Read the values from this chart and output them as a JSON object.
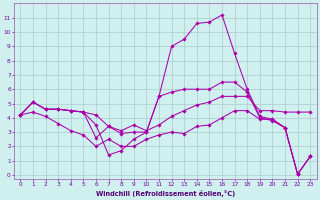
{
  "xlabel": "Windchill (Refroidissement éolien,°C)",
  "bg_color": "#cff0ee",
  "grid_color": "#aacccc",
  "line_color": "#aa00aa",
  "spine_color": "#9955aa",
  "tick_color": "#7700aa",
  "xlabel_color": "#550077",
  "xlim": [
    -0.5,
    23.5
  ],
  "ylim": [
    -0.3,
    12.0
  ],
  "xticks": [
    0,
    1,
    2,
    3,
    4,
    5,
    6,
    7,
    8,
    9,
    10,
    11,
    12,
    13,
    14,
    15,
    16,
    17,
    18,
    19,
    20,
    21,
    22,
    23
  ],
  "yticks": [
    0,
    1,
    2,
    3,
    4,
    5,
    6,
    7,
    8,
    9,
    10,
    11
  ],
  "lines": [
    {
      "x": [
        0,
        1,
        2,
        3,
        4,
        5,
        6,
        7,
        8,
        9,
        10,
        11,
        12,
        13,
        14,
        15,
        16,
        17,
        18,
        19,
        20,
        21,
        22,
        23
      ],
      "y": [
        4.2,
        5.1,
        4.6,
        4.6,
        4.5,
        4.4,
        3.5,
        1.4,
        1.7,
        2.5,
        3.0,
        5.5,
        9.0,
        9.5,
        10.6,
        10.7,
        11.2,
        8.5,
        6.0,
        4.1,
        3.9,
        3.3,
        0.05,
        1.3
      ]
    },
    {
      "x": [
        0,
        1,
        2,
        3,
        4,
        5,
        6,
        7,
        8,
        9,
        10,
        11,
        12,
        13,
        14,
        15,
        16,
        17,
        18,
        19,
        20,
        21,
        22,
        23
      ],
      "y": [
        4.2,
        5.1,
        4.6,
        4.6,
        4.5,
        4.4,
        2.6,
        3.4,
        2.9,
        3.0,
        3.0,
        5.5,
        5.8,
        6.0,
        6.0,
        6.0,
        6.5,
        6.5,
        5.8,
        4.0,
        3.8,
        3.3,
        0.05,
        1.3
      ]
    },
    {
      "x": [
        0,
        1,
        2,
        3,
        4,
        5,
        6,
        7,
        8,
        9,
        10,
        11,
        12,
        13,
        14,
        15,
        16,
        17,
        18,
        19,
        20,
        21,
        22,
        23
      ],
      "y": [
        4.2,
        5.1,
        4.6,
        4.6,
        4.5,
        4.4,
        4.2,
        3.4,
        3.1,
        3.5,
        3.1,
        3.5,
        4.1,
        4.5,
        4.9,
        5.1,
        5.5,
        5.5,
        5.5,
        4.5,
        4.5,
        4.4,
        4.4,
        4.4
      ]
    },
    {
      "x": [
        0,
        1,
        2,
        3,
        4,
        5,
        6,
        7,
        8,
        9,
        10,
        11,
        12,
        13,
        14,
        15,
        16,
        17,
        18,
        19,
        20,
        21,
        22,
        23
      ],
      "y": [
        4.2,
        4.4,
        4.1,
        3.6,
        3.1,
        2.8,
        2.0,
        2.5,
        2.0,
        2.0,
        2.5,
        2.8,
        3.0,
        2.9,
        3.4,
        3.5,
        4.0,
        4.5,
        4.5,
        3.9,
        3.9,
        3.3,
        0.05,
        1.3
      ]
    }
  ]
}
